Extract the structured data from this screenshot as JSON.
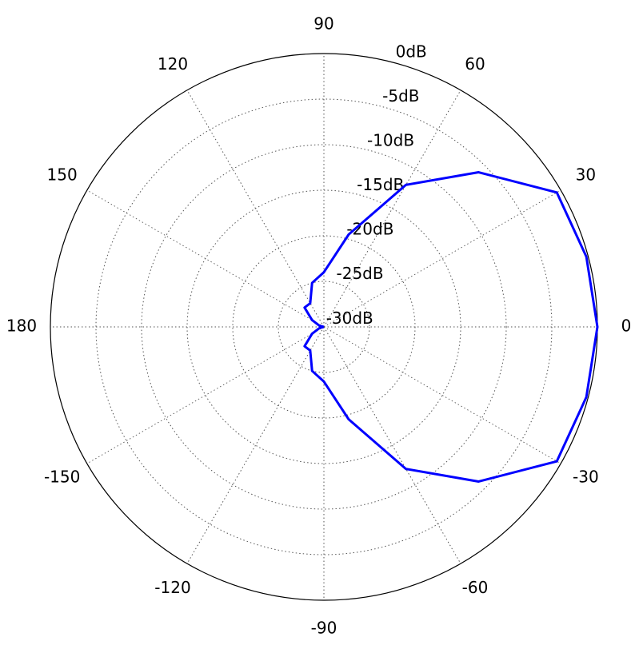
{
  "chart_data": {
    "type": "polar",
    "theta": [
      -180,
      -165,
      -150,
      -135,
      -120,
      -105,
      -90,
      -75,
      -60,
      -45,
      -30,
      -15,
      0,
      15,
      30,
      45,
      60,
      75,
      90,
      105,
      120,
      135,
      150,
      165,
      180
    ],
    "series": [
      {
        "color": "#0000ff",
        "values": [
          -30,
          -29.5,
          -28.5,
          -27,
          -27,
          -25,
          -24,
          -19.5,
          -12,
          -6,
          -0.5,
          -0.2,
          0,
          -0.2,
          -0.5,
          -6,
          -12,
          -19.5,
          -24,
          -25,
          -27,
          -27,
          -28.5,
          -29.5,
          -30
        ]
      }
    ],
    "rlim": [
      -30,
      0
    ],
    "rticks": [
      {
        "value": 0,
        "label": "0dB"
      },
      {
        "value": -5,
        "label": "-5dB"
      },
      {
        "value": -10,
        "label": "-10dB"
      },
      {
        "value": -15,
        "label": "-15dB"
      },
      {
        "value": -20,
        "label": "-20dB"
      },
      {
        "value": -25,
        "label": "-25dB"
      },
      {
        "value": -30,
        "label": "-30dB"
      }
    ],
    "thetaticks": [
      0,
      30,
      60,
      90,
      120,
      150,
      180,
      -150,
      -120,
      -90,
      -60,
      -30
    ],
    "grid": true
  }
}
